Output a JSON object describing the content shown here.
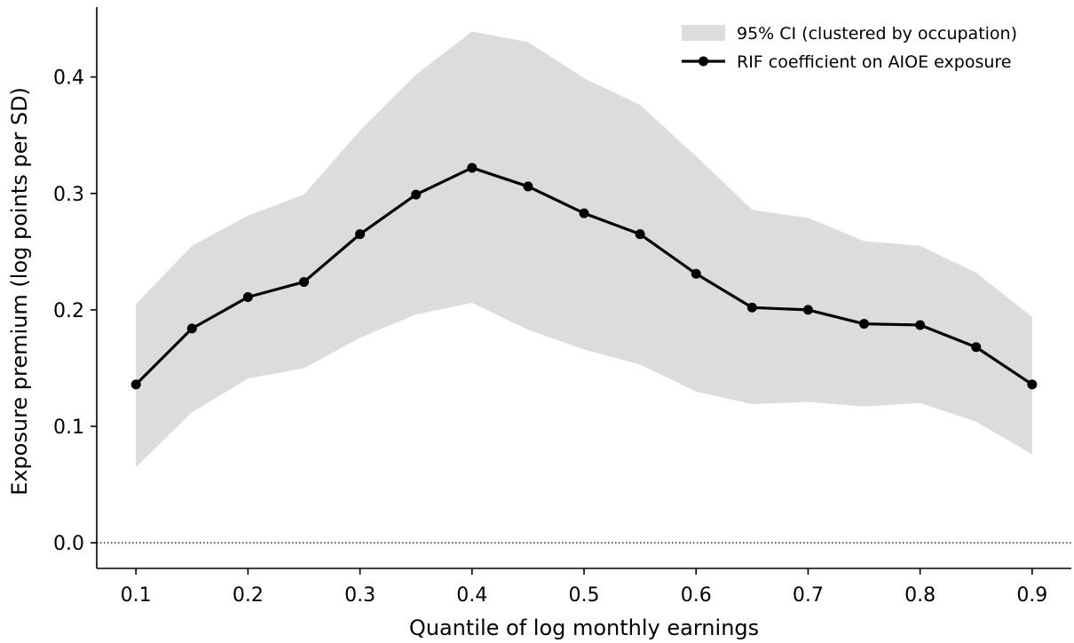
{
  "chart_data": {
    "type": "line",
    "title": "",
    "xlabel": "Quantile of log monthly earnings",
    "ylabel": "Exposure premium (log points per SD)",
    "x": [
      0.1,
      0.15,
      0.2,
      0.25,
      0.3,
      0.35,
      0.4,
      0.45,
      0.5,
      0.55,
      0.6,
      0.65,
      0.7,
      0.75,
      0.8,
      0.85,
      0.9
    ],
    "series": [
      {
        "name": "RIF coefficient on AIOE exposure",
        "values": [
          0.136,
          0.184,
          0.211,
          0.224,
          0.265,
          0.299,
          0.322,
          0.306,
          0.283,
          0.265,
          0.231,
          0.202,
          0.2,
          0.188,
          0.187,
          0.168,
          0.136
        ],
        "color": "#000000",
        "marker": "circle"
      }
    ],
    "ci": {
      "name": "95% CI (clustered by occupation)",
      "lower": [
        0.065,
        0.112,
        0.141,
        0.15,
        0.176,
        0.196,
        0.206,
        0.183,
        0.166,
        0.153,
        0.13,
        0.119,
        0.121,
        0.117,
        0.12,
        0.104,
        0.076
      ],
      "upper": [
        0.205,
        0.255,
        0.281,
        0.299,
        0.354,
        0.402,
        0.439,
        0.43,
        0.399,
        0.376,
        0.332,
        0.286,
        0.279,
        0.259,
        0.255,
        0.232,
        0.194
      ],
      "color": "#dcdcdc"
    },
    "xticks": [
      "0.1",
      "0.2",
      "0.3",
      "0.4",
      "0.5",
      "0.6",
      "0.7",
      "0.8",
      "0.9"
    ],
    "yticks": [
      "0.0",
      "0.1",
      "0.2",
      "0.3",
      "0.4"
    ],
    "xlim": [
      0.065,
      0.935
    ],
    "ylim": [
      -0.022,
      0.46
    ],
    "reference_line": {
      "y": 0.0,
      "style": "dotted"
    },
    "grid": false,
    "legend_position": "top-right"
  }
}
